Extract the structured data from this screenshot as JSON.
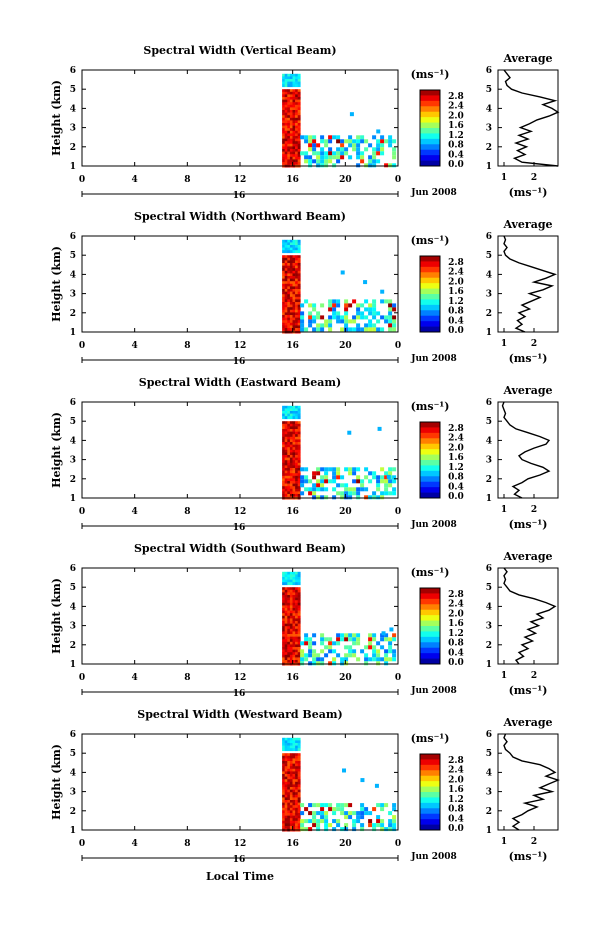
{
  "figure": {
    "xlabel": "Local Time",
    "date_label": "Jun 2008",
    "day_label": "16",
    "colorbar_unit": "(ms⁻¹)",
    "colorbar_ticks": [
      "2.8",
      "2.4",
      "2.0",
      "1.6",
      "1.2",
      "0.8",
      "0.4",
      "0.0"
    ],
    "average_title": "Average",
    "average_unit": "(ms⁻¹)",
    "avg_xticks": [
      "1",
      "2"
    ]
  },
  "chart_data": [
    {
      "type": "heatmap",
      "title": "Spectral Width (Vertical Beam)",
      "xlabel": "Local Time",
      "ylabel": "Height (km)",
      "x_ticks": [
        "0",
        "4",
        "8",
        "12",
        "16",
        "20",
        "0"
      ],
      "y_ticks": [
        "1",
        "2",
        "3",
        "4",
        "5",
        "6"
      ],
      "xlim": [
        0,
        24
      ],
      "ylim": [
        1,
        6
      ],
      "color_range": [
        0,
        2.8
      ],
      "data_start_hour": 15.2,
      "top_cloud_height_km": 4.6,
      "bottom_cloud_height_km": 2.6,
      "scattered_points": [
        [
          20.5,
          3.7
        ],
        [
          22.5,
          2.8
        ]
      ],
      "average_profile": {
        "title": "Average",
        "xlabel": "(ms⁻¹)",
        "xlim": [
          0.8,
          2.8
        ],
        "ylim": [
          1,
          6
        ],
        "height": [
          1.0,
          1.2,
          1.4,
          1.6,
          1.8,
          2.0,
          2.2,
          2.4,
          2.6,
          2.8,
          3.0,
          3.2,
          3.4,
          3.6,
          3.8,
          4.0,
          4.2,
          4.4,
          4.6,
          4.8,
          5.0,
          5.2,
          5.4,
          5.6,
          5.8,
          6.0
        ],
        "width": [
          2.8,
          1.6,
          1.35,
          1.7,
          1.45,
          1.75,
          1.4,
          1.8,
          1.5,
          1.9,
          1.55,
          1.85,
          2.1,
          2.5,
          2.9,
          2.6,
          2.3,
          2.7,
          2.2,
          1.6,
          1.25,
          1.1,
          1.05,
          1.2,
          1.1,
          1.0
        ]
      }
    },
    {
      "type": "heatmap",
      "title": "Spectral Width (Northward Beam)",
      "xlabel": "Local Time",
      "ylabel": "Height (km)",
      "x_ticks": [
        "0",
        "4",
        "8",
        "12",
        "16",
        "20",
        "0"
      ],
      "y_ticks": [
        "1",
        "2",
        "3",
        "4",
        "5",
        "6"
      ],
      "xlim": [
        0,
        24
      ],
      "ylim": [
        1,
        6
      ],
      "color_range": [
        0,
        2.8
      ],
      "data_start_hour": 15.2,
      "top_cloud_height_km": 4.6,
      "bottom_cloud_height_km": 2.7,
      "scattered_points": [
        [
          19.8,
          4.1
        ],
        [
          21.5,
          3.6
        ],
        [
          22.8,
          3.1
        ]
      ],
      "average_profile": {
        "title": "Average",
        "xlabel": "(ms⁻¹)",
        "xlim": [
          0.8,
          2.8
        ],
        "ylim": [
          1,
          6
        ],
        "height": [
          1.0,
          1.2,
          1.4,
          1.6,
          1.8,
          2.0,
          2.2,
          2.4,
          2.6,
          2.8,
          3.0,
          3.2,
          3.4,
          3.6,
          3.8,
          4.0,
          4.2,
          4.4,
          4.6,
          4.8,
          5.0,
          5.2,
          5.4,
          5.6,
          5.8,
          6.0
        ],
        "width": [
          1.7,
          1.4,
          1.6,
          1.45,
          1.7,
          1.5,
          1.85,
          1.6,
          1.9,
          2.2,
          1.85,
          2.3,
          2.6,
          2.0,
          2.4,
          2.7,
          2.3,
          1.9,
          1.5,
          1.2,
          1.05,
          1.0,
          1.1,
          1.0,
          1.05,
          1.0
        ]
      }
    },
    {
      "type": "heatmap",
      "title": "Spectral Width (Eastward Beam)",
      "xlabel": "Local Time",
      "ylabel": "Height (km)",
      "x_ticks": [
        "0",
        "4",
        "8",
        "12",
        "16",
        "20",
        "0"
      ],
      "y_ticks": [
        "1",
        "2",
        "3",
        "4",
        "5",
        "6"
      ],
      "xlim": [
        0,
        24
      ],
      "ylim": [
        1,
        6
      ],
      "color_range": [
        0,
        2.8
      ],
      "data_start_hour": 15.2,
      "top_cloud_height_km": 4.6,
      "bottom_cloud_height_km": 2.6,
      "scattered_points": [
        [
          20.3,
          4.4
        ],
        [
          22.6,
          4.6
        ],
        [
          23.3,
          2.1
        ]
      ],
      "average_profile": {
        "title": "Average",
        "xlabel": "(ms⁻¹)",
        "xlim": [
          0.8,
          2.8
        ],
        "ylim": [
          1,
          6
        ],
        "height": [
          1.0,
          1.2,
          1.4,
          1.6,
          1.8,
          2.0,
          2.2,
          2.4,
          2.6,
          2.8,
          3.0,
          3.2,
          3.4,
          3.6,
          3.8,
          4.0,
          4.2,
          4.4,
          4.6,
          4.8,
          5.0,
          5.2,
          5.4,
          5.6,
          5.8,
          6.0
        ],
        "width": [
          1.6,
          1.35,
          1.5,
          1.3,
          1.6,
          1.8,
          2.2,
          2.5,
          2.3,
          1.9,
          1.6,
          1.5,
          1.7,
          2.0,
          2.4,
          2.5,
          2.2,
          1.8,
          1.4,
          1.2,
          1.1,
          1.0,
          1.05,
          1.0,
          0.95,
          1.0
        ]
      }
    },
    {
      "type": "heatmap",
      "title": "Spectral Width (Southward Beam)",
      "xlabel": "Local Time",
      "ylabel": "Height (km)",
      "x_ticks": [
        "0",
        "4",
        "8",
        "12",
        "16",
        "20",
        "0"
      ],
      "y_ticks": [
        "1",
        "2",
        "3",
        "4",
        "5",
        "6"
      ],
      "xlim": [
        0,
        24
      ],
      "ylim": [
        1,
        6
      ],
      "color_range": [
        0,
        2.8
      ],
      "data_start_hour": 15.2,
      "top_cloud_height_km": 4.6,
      "bottom_cloud_height_km": 2.6,
      "scattered_points": [
        [
          22.9,
          2.6
        ],
        [
          23.5,
          2.8
        ]
      ],
      "average_profile": {
        "title": "Average",
        "xlabel": "(ms⁻¹)",
        "xlim": [
          0.8,
          2.8
        ],
        "ylim": [
          1,
          6
        ],
        "height": [
          1.0,
          1.2,
          1.4,
          1.6,
          1.8,
          2.0,
          2.2,
          2.4,
          2.6,
          2.8,
          3.0,
          3.2,
          3.4,
          3.6,
          3.8,
          4.0,
          4.2,
          4.4,
          4.6,
          4.8,
          5.0,
          5.2,
          5.4,
          5.6,
          5.8,
          6.0
        ],
        "width": [
          1.5,
          1.4,
          1.65,
          1.5,
          1.8,
          1.6,
          1.95,
          1.7,
          2.05,
          1.8,
          2.15,
          1.9,
          2.3,
          2.1,
          2.5,
          2.7,
          2.4,
          2.0,
          1.5,
          1.2,
          1.1,
          1.0,
          1.05,
          1.0,
          1.1,
          1.0
        ]
      }
    },
    {
      "type": "heatmap",
      "title": "Spectral Width (Westward Beam)",
      "xlabel": "Local Time",
      "ylabel": "Height (km)",
      "x_ticks": [
        "0",
        "4",
        "8",
        "12",
        "16",
        "20",
        "0"
      ],
      "y_ticks": [
        "1",
        "2",
        "3",
        "4",
        "5",
        "6"
      ],
      "xlim": [
        0,
        24
      ],
      "ylim": [
        1,
        6
      ],
      "color_range": [
        0,
        2.8
      ],
      "data_start_hour": 15.2,
      "top_cloud_height_km": 4.6,
      "bottom_cloud_height_km": 2.4,
      "scattered_points": [
        [
          19.9,
          4.1
        ],
        [
          21.3,
          3.6
        ],
        [
          22.4,
          3.3
        ]
      ],
      "average_profile": {
        "title": "Average",
        "xlabel": "(ms⁻¹)",
        "xlim": [
          0.8,
          2.8
        ],
        "ylim": [
          1,
          6
        ],
        "height": [
          1.0,
          1.2,
          1.4,
          1.6,
          1.8,
          2.0,
          2.2,
          2.4,
          2.6,
          2.8,
          3.0,
          3.2,
          3.4,
          3.6,
          3.8,
          4.0,
          4.2,
          4.4,
          4.6,
          4.8,
          5.0,
          5.2,
          5.4,
          5.6,
          5.8,
          6.0
        ],
        "width": [
          1.5,
          1.3,
          1.5,
          1.3,
          1.6,
          1.8,
          2.1,
          1.7,
          2.3,
          2.0,
          2.6,
          2.2,
          2.5,
          2.8,
          2.4,
          2.7,
          2.5,
          2.2,
          1.6,
          1.3,
          1.2,
          1.05,
          1.0,
          1.1,
          1.0,
          1.05
        ]
      }
    }
  ]
}
